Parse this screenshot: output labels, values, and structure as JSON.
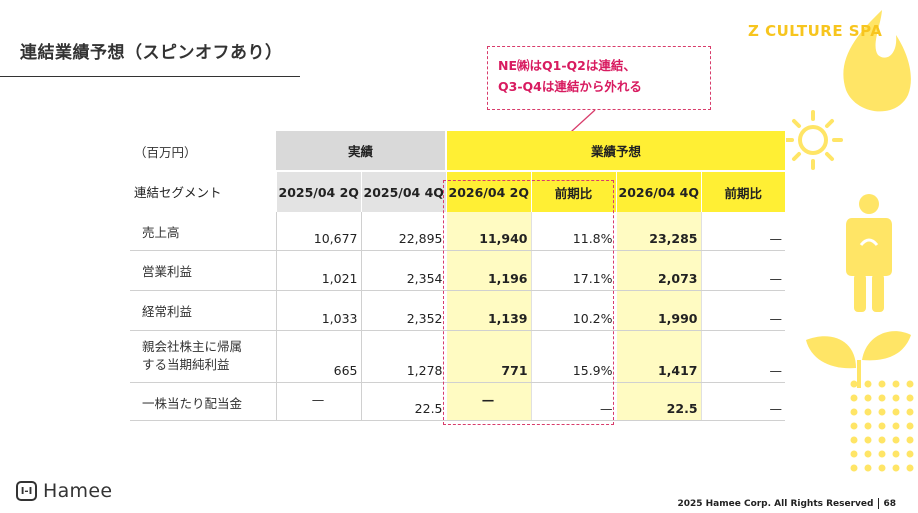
{
  "slide": {
    "title": "連結業績予想（スピンオフあり）",
    "brand": "Z CULTURE SPA",
    "logo_text": "Hamee",
    "copyright": "2025 Hamee Corp. All Rights Reserved",
    "page_number": "68"
  },
  "callout": {
    "line1": "NE㈱はQ1-Q2は連結、",
    "line2": "Q3-Q4は連結から外れる"
  },
  "table": {
    "unit": "（百万円）",
    "segment_label": "連結セグメント",
    "group_actual": "実績",
    "group_forecast": "業績予想",
    "columns": [
      "2025/04 2Q",
      "2025/04 4Q",
      "2026/04 2Q",
      "前期比",
      "2026/04 4Q",
      "前期比"
    ],
    "rows": [
      {
        "label": "売上高",
        "values": [
          "10,677",
          "22,895",
          "11,940",
          "11.8%",
          "23,285",
          "—"
        ]
      },
      {
        "label": "営業利益",
        "values": [
          "1,021",
          "2,354",
          "1,196",
          "17.1%",
          "2,073",
          "—"
        ]
      },
      {
        "label": "経常利益",
        "values": [
          "1,033",
          "2,352",
          "1,139",
          "10.2%",
          "1,990",
          "—"
        ]
      },
      {
        "label_line1": "親会社株主に帰属",
        "label_line2": "する当期純利益",
        "values": [
          "665",
          "1,278",
          "771",
          "15.9%",
          "1,417",
          "—"
        ]
      },
      {
        "label": "一株当たり配当金",
        "values": [
          "—",
          "22.5",
          "—",
          "—",
          "22.5",
          "—"
        ]
      }
    ]
  },
  "colors": {
    "forecast_header": "#ffef34",
    "forecast_fill": "#fffbc2",
    "actual_header": "#d9d9d9",
    "callout": "#d81b60",
    "brand": "#f7c51e"
  }
}
